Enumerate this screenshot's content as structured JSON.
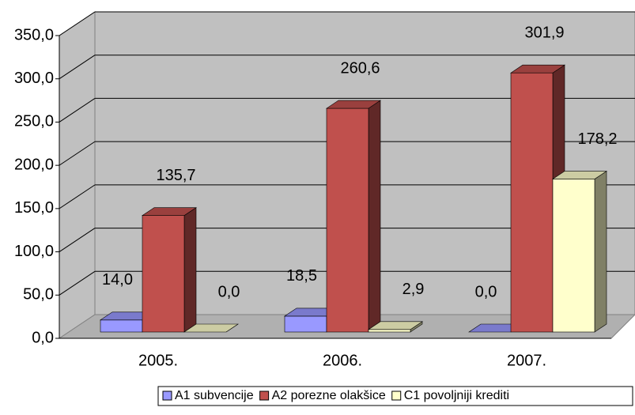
{
  "chart_data": {
    "type": "bar3d",
    "categories": [
      "2005.",
      "2006.",
      "2007."
    ],
    "series": [
      {
        "name": "A1 subvencije",
        "color": "#9999ff",
        "values": [
          14.0,
          18.5,
          0.0
        ],
        "value_labels": [
          "14,0",
          "18,5",
          "0,0"
        ]
      },
      {
        "name": "A2 porezne olakšice",
        "color": "#c0504d",
        "values": [
          135.7,
          260.6,
          301.9
        ],
        "value_labels": [
          "135,7",
          "260,6",
          "301,9"
        ]
      },
      {
        "name": "C1 povoljniji krediti",
        "color": "#ffffcc",
        "values": [
          0.0,
          2.9,
          178.2
        ],
        "value_labels": [
          "0,0",
          "2,9",
          "178,2"
        ]
      }
    ],
    "ylim": [
      0,
      350
    ],
    "yticks": [
      {
        "value": 0,
        "label": "0,0"
      },
      {
        "value": 50,
        "label": "50,0"
      },
      {
        "value": 100,
        "label": "100,0"
      },
      {
        "value": 150,
        "label": "150,0"
      },
      {
        "value": 200,
        "label": "200,0"
      },
      {
        "value": 250,
        "label": "250,0"
      },
      {
        "value": 300,
        "label": "300,0"
      },
      {
        "value": 350,
        "label": "350,0"
      }
    ],
    "grid": true,
    "legend": "bottom-right"
  }
}
